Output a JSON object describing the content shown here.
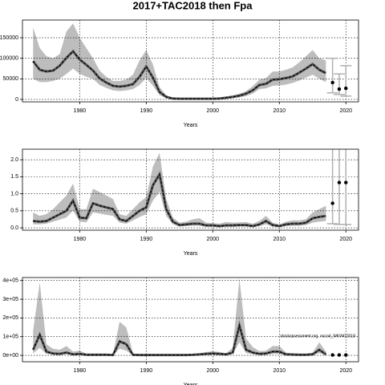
{
  "chart_data": [
    {
      "type": "line",
      "title": "2017+TAC2018 then Fpa",
      "xlabel": "Years",
      "x": [
        1973,
        1974,
        1975,
        1976,
        1977,
        1978,
        1979,
        1980,
        1981,
        1982,
        1983,
        1984,
        1985,
        1986,
        1987,
        1988,
        1989,
        1990,
        1991,
        1992,
        1993,
        1994,
        1995,
        1996,
        1997,
        1998,
        1999,
        2000,
        2001,
        2002,
        2003,
        2004,
        2005,
        2006,
        2007,
        2008,
        2009,
        2010,
        2011,
        2012,
        2013,
        2014,
        2015,
        2016,
        2017
      ],
      "values": [
        93000,
        72000,
        68000,
        70000,
        82000,
        101000,
        117000,
        97000,
        84000,
        70000,
        51000,
        41000,
        33000,
        31000,
        33000,
        37000,
        55000,
        80000,
        53000,
        18000,
        6000,
        2000,
        1500,
        1500,
        1500,
        1500,
        1500,
        1500,
        2000,
        4000,
        6000,
        9000,
        14000,
        22000,
        35000,
        38000,
        48000,
        49000,
        52000,
        56000,
        65000,
        75000,
        86000,
        72000,
        64000
      ],
      "upper": [
        175000,
        125000,
        105000,
        100000,
        110000,
        165000,
        185000,
        150000,
        125000,
        100000,
        70000,
        55000,
        45000,
        45000,
        48000,
        60000,
        95000,
        120000,
        85000,
        30000,
        10000,
        4000,
        3000,
        3000,
        3000,
        3000,
        3000,
        3000,
        4000,
        7000,
        10000,
        14000,
        20000,
        32000,
        48000,
        52000,
        68000,
        68000,
        72000,
        78000,
        90000,
        105000,
        120000,
        100000,
        95000
      ],
      "lower": [
        50000,
        42000,
        42000,
        45000,
        50000,
        62000,
        75000,
        62000,
        55000,
        50000,
        35000,
        28000,
        22000,
        20000,
        22000,
        25000,
        35000,
        52000,
        33000,
        10000,
        3000,
        1000,
        800,
        800,
        800,
        800,
        800,
        800,
        1000,
        2500,
        3500,
        5000,
        8000,
        14000,
        25000,
        27000,
        33000,
        34000,
        36000,
        40000,
        46000,
        53000,
        60000,
        50000,
        42000
      ],
      "color": "#000000",
      "band_color": "#bdbdbd",
      "error_color": "#b0b0b0",
      "projection": {
        "x": [
          2018,
          2019,
          2020
        ],
        "values": [
          41000,
          25000,
          27000
        ],
        "low": [
          16000,
          12000,
          8000
        ],
        "high": [
          100000,
          62000,
          82000
        ]
      },
      "xlim": [
        1971.4,
        2021.9
      ],
      "xticks": [
        1980,
        1990,
        2000,
        2010,
        2020
      ],
      "ylim": [
        -6000,
        193000
      ],
      "yticks": [
        0,
        50000,
        100000,
        150000
      ],
      "grid": true
    },
    {
      "type": "line",
      "xlabel": "Years",
      "x": [
        1973,
        1974,
        1975,
        1976,
        1977,
        1978,
        1979,
        1980,
        1981,
        1982,
        1983,
        1984,
        1985,
        1986,
        1987,
        1988,
        1989,
        1990,
        1991,
        1992,
        1993,
        1994,
        1995,
        1996,
        1997,
        1998,
        1999,
        2000,
        2001,
        2002,
        2003,
        2004,
        2005,
        2006,
        2007,
        2008,
        2009,
        2010,
        2011,
        2012,
        2013,
        2014,
        2015,
        2016,
        2017
      ],
      "values": [
        0.2,
        0.18,
        0.2,
        0.3,
        0.4,
        0.5,
        0.8,
        0.3,
        0.28,
        0.72,
        0.65,
        0.6,
        0.55,
        0.25,
        0.2,
        0.35,
        0.5,
        0.6,
        1.25,
        1.57,
        0.55,
        0.18,
        0.08,
        0.1,
        0.12,
        0.12,
        0.07,
        0.07,
        0.05,
        0.07,
        0.07,
        0.08,
        0.08,
        0.05,
        0.1,
        0.2,
        0.08,
        0.05,
        0.1,
        0.12,
        0.12,
        0.15,
        0.28,
        0.32,
        0.35
      ],
      "upper": [
        0.45,
        0.35,
        0.4,
        0.55,
        0.75,
        0.95,
        1.3,
        0.55,
        0.55,
        1.15,
        1.05,
        0.95,
        0.85,
        0.4,
        0.35,
        0.55,
        0.75,
        0.9,
        1.8,
        2.2,
        0.85,
        0.3,
        0.15,
        0.18,
        0.25,
        0.28,
        0.15,
        0.14,
        0.12,
        0.17,
        0.15,
        0.16,
        0.17,
        0.12,
        0.2,
        0.35,
        0.15,
        0.1,
        0.18,
        0.22,
        0.22,
        0.25,
        0.45,
        0.55,
        0.65
      ],
      "lower": [
        0.1,
        0.1,
        0.12,
        0.18,
        0.24,
        0.3,
        0.5,
        0.18,
        0.16,
        0.45,
        0.42,
        0.38,
        0.35,
        0.15,
        0.12,
        0.22,
        0.32,
        0.4,
        0.8,
        1.05,
        0.35,
        0.1,
        0.04,
        0.05,
        0.06,
        0.06,
        0.03,
        0.03,
        0.02,
        0.03,
        0.03,
        0.04,
        0.04,
        0.02,
        0.05,
        0.1,
        0.04,
        0.02,
        0.05,
        0.06,
        0.06,
        0.08,
        0.15,
        0.18,
        0.2
      ],
      "color": "#000000",
      "band_color": "#bdbdbd",
      "error_color": "#b0b0b0",
      "projection": {
        "x": [
          2018,
          2019,
          2020
        ],
        "values": [
          0.72,
          1.33,
          1.33
        ],
        "low": [
          0.12,
          0.1,
          0.1
        ],
        "high": [
          2.4,
          2.4,
          2.4
        ]
      },
      "xlim": [
        1971.4,
        2021.9
      ],
      "xticks": [
        1980,
        1990,
        2000,
        2010,
        2020
      ],
      "ylim": [
        -0.07,
        2.31
      ],
      "yticks": [
        {
          "value": 0,
          "label": "0.0"
        },
        {
          "value": 0.5,
          "label": "0.5"
        },
        {
          "value": 1,
          "label": "1.0"
        },
        {
          "value": 1.5,
          "label": "1.5"
        },
        {
          "value": 2,
          "label": "2.0"
        }
      ],
      "grid": true
    },
    {
      "type": "line",
      "xlabel": "Years",
      "annotation": "stockassessment.org, nscod_WKWG2018",
      "x": [
        1973,
        1974,
        1975,
        1976,
        1977,
        1978,
        1979,
        1980,
        1981,
        1982,
        1983,
        1984,
        1985,
        1986,
        1987,
        1988,
        1989,
        1990,
        1991,
        1992,
        1993,
        1994,
        1995,
        1996,
        1997,
        1998,
        1999,
        2000,
        2001,
        2002,
        2003,
        2004,
        2005,
        2006,
        2007,
        2008,
        2009,
        2010,
        2011,
        2012,
        2013,
        2014,
        2015,
        2016,
        2017
      ],
      "values": [
        30000,
        110000,
        20000,
        10000,
        8000,
        15000,
        5000,
        8000,
        3000,
        3000,
        3000,
        3000,
        2000,
        75000,
        60000,
        3000,
        2000,
        2000,
        2000,
        2000,
        2000,
        2000,
        2000,
        2000,
        3000,
        5000,
        8000,
        10000,
        8000,
        5000,
        15000,
        160000,
        30000,
        15000,
        8000,
        10000,
        20000,
        20000,
        5000,
        4000,
        3000,
        3000,
        5000,
        30000,
        5000
      ],
      "upper": [
        130000,
        390000,
        60000,
        35000,
        30000,
        50000,
        20000,
        25000,
        10000,
        10000,
        10000,
        10000,
        8000,
        180000,
        150000,
        10000,
        6000,
        6000,
        6000,
        6000,
        6000,
        6000,
        6000,
        6000,
        8000,
        12000,
        18000,
        22000,
        18000,
        12000,
        40000,
        410000,
        90000,
        45000,
        22000,
        25000,
        50000,
        50000,
        15000,
        12000,
        10000,
        10000,
        15000,
        70000,
        20000
      ],
      "lower": [
        10000,
        40000,
        8000,
        4000,
        3000,
        6000,
        2000,
        3000,
        1000,
        1000,
        1000,
        1000,
        800,
        35000,
        25000,
        1000,
        800,
        800,
        800,
        800,
        800,
        800,
        800,
        800,
        1000,
        2000,
        3000,
        4000,
        3000,
        2000,
        6000,
        70000,
        12000,
        6000,
        3000,
        4000,
        8000,
        8000,
        2000,
        1500,
        1000,
        1000,
        2000,
        12000,
        1000
      ],
      "color": "#000000",
      "band_color": "#bdbdbd",
      "error_color": "#b0b0b0",
      "projection": {
        "x": [
          2018,
          2019,
          2020
        ],
        "values": [
          2000,
          2000,
          2000
        ]
      },
      "xlim": [
        1971.4,
        2021.9
      ],
      "xticks": [
        1980,
        1990,
        2000,
        2010,
        2020
      ],
      "ylim": [
        -34000,
        416000
      ],
      "yticks": [
        {
          "value": 0,
          "label": "0e+00"
        },
        {
          "value": 100000,
          "label": "1e+05"
        },
        {
          "value": 200000,
          "label": "2e+05"
        },
        {
          "value": 300000,
          "label": "3e+05"
        },
        {
          "value": 400000,
          "label": "4e+05"
        }
      ],
      "grid": true
    }
  ]
}
